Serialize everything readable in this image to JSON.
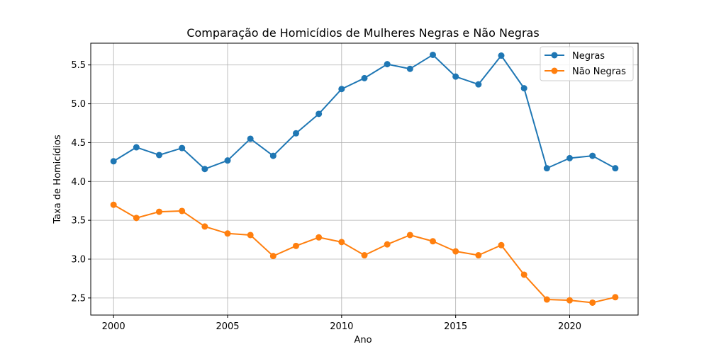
{
  "chart_data": {
    "type": "line",
    "title": "Comparação de Homicídios de Mulheres Negras e Não Negras",
    "xlabel": "Ano",
    "ylabel": "Taxa de Homicídios",
    "x": [
      2000,
      2001,
      2002,
      2003,
      2004,
      2005,
      2006,
      2007,
      2008,
      2009,
      2010,
      2011,
      2012,
      2013,
      2014,
      2015,
      2016,
      2017,
      2018,
      2019,
      2020,
      2021,
      2022
    ],
    "xlim": [
      1999,
      2023
    ],
    "ylim": [
      2.28,
      5.78
    ],
    "xticks": [
      2000,
      2005,
      2010,
      2015,
      2020
    ],
    "yticks": [
      2.5,
      3.0,
      3.5,
      4.0,
      4.5,
      5.0,
      5.5
    ],
    "xtick_labels": [
      "2000",
      "2005",
      "2010",
      "2015",
      "2020"
    ],
    "ytick_labels": [
      "2.5",
      "3.0",
      "3.5",
      "4.0",
      "4.5",
      "5.0",
      "5.5"
    ],
    "grid": true,
    "legend_position": "top-right",
    "series": [
      {
        "name": "Negras",
        "color": "#1f77b4",
        "values": [
          4.26,
          4.44,
          4.34,
          4.43,
          4.16,
          4.27,
          4.55,
          4.33,
          4.62,
          4.87,
          5.19,
          5.33,
          5.51,
          5.45,
          5.63,
          5.35,
          5.25,
          5.62,
          5.2,
          4.17,
          4.3,
          4.33,
          4.17
        ]
      },
      {
        "name": "Não Negras",
        "color": "#ff7f0e",
        "values": [
          3.7,
          3.53,
          3.61,
          3.62,
          3.42,
          3.33,
          3.31,
          3.04,
          3.17,
          3.28,
          3.22,
          3.05,
          3.19,
          3.31,
          3.23,
          3.1,
          3.05,
          3.18,
          2.8,
          2.48,
          2.47,
          2.44,
          2.51
        ]
      }
    ]
  }
}
